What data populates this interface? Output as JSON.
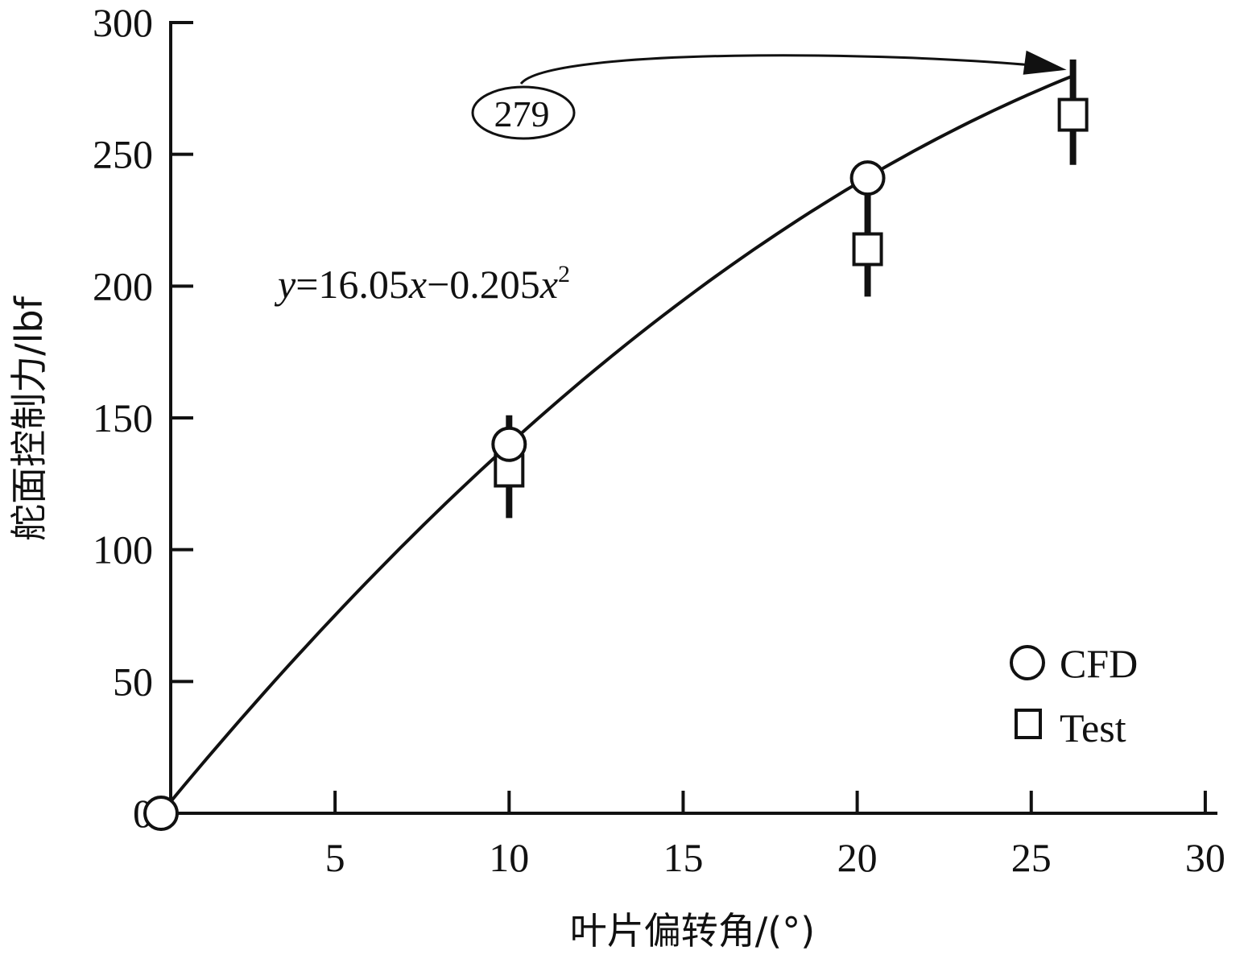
{
  "chart_data": {
    "type": "scatter",
    "xlabel": "叶片偏转角/(°)",
    "ylabel": "舵面控制力/lbf",
    "xlim": [
      0,
      30
    ],
    "ylim": [
      0,
      300
    ],
    "xticks": [
      5,
      10,
      15,
      20,
      25,
      30
    ],
    "yticks": [
      0,
      50,
      100,
      150,
      200,
      250,
      300
    ],
    "grid": false,
    "legend_position": "bottom-right",
    "series": [
      {
        "name": "CFD",
        "marker": "circle",
        "points": [
          {
            "x": 0,
            "y": 0
          },
          {
            "x": 10,
            "y": 140
          },
          {
            "x": 20.3,
            "y": 241
          }
        ]
      },
      {
        "name": "Test",
        "marker": "square",
        "points": [
          {
            "x": 10,
            "y": 130,
            "y_low": 112,
            "y_high": 151
          },
          {
            "x": 20.3,
            "y": 214,
            "y_low": 196,
            "y_high": 238
          },
          {
            "x": 26.2,
            "y": 265,
            "y_low": 246,
            "y_high": 286
          }
        ]
      }
    ],
    "fit": {
      "equation_parts": [
        "y",
        "=16.05",
        "x",
        "−0.205",
        "x",
        "2"
      ],
      "a": 16.05,
      "b": -0.205,
      "x_range": [
        0,
        26.2
      ]
    },
    "annotation": {
      "text": "279",
      "target": {
        "x": 26.2,
        "y": 279
      }
    }
  }
}
